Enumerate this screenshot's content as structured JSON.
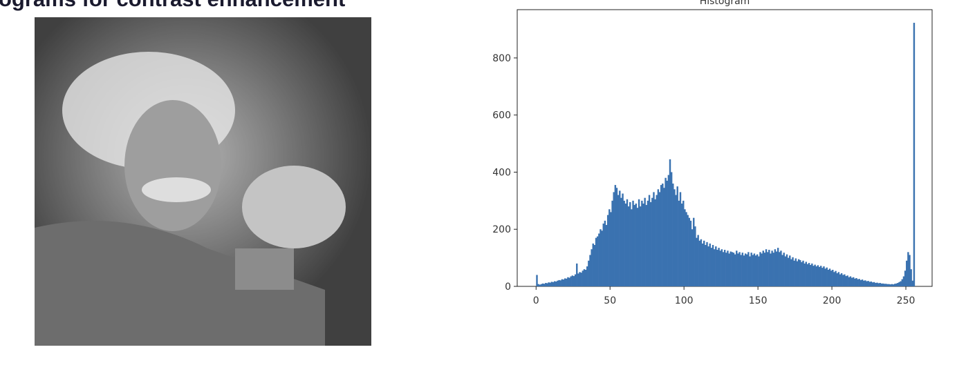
{
  "title": "ograms for contrast enhancement",
  "chart_data": {
    "type": "histogram",
    "title": "Histogram",
    "color": "#3a72b0",
    "bins": [
      0,
      1,
      2,
      3,
      4,
      5,
      6,
      7,
      8,
      9,
      10,
      11,
      12,
      13,
      14,
      15,
      16,
      17,
      18,
      19,
      20,
      21,
      22,
      23,
      24,
      25,
      26,
      27,
      28,
      29,
      30,
      31,
      32,
      33,
      34,
      35,
      36,
      37,
      38,
      39,
      40,
      41,
      42,
      43,
      44,
      45,
      46,
      47,
      48,
      49,
      50,
      51,
      52,
      53,
      54,
      55,
      56,
      57,
      58,
      59,
      60,
      61,
      62,
      63,
      64,
      65,
      66,
      67,
      68,
      69,
      70,
      71,
      72,
      73,
      74,
      75,
      76,
      77,
      78,
      79,
      80,
      81,
      82,
      83,
      84,
      85,
      86,
      87,
      88,
      89,
      90,
      91,
      92,
      93,
      94,
      95,
      96,
      97,
      98,
      99,
      100,
      101,
      102,
      103,
      104,
      105,
      106,
      107,
      108,
      109,
      110,
      111,
      112,
      113,
      114,
      115,
      116,
      117,
      118,
      119,
      120,
      121,
      122,
      123,
      124,
      125,
      126,
      127,
      128,
      129,
      130,
      131,
      132,
      133,
      134,
      135,
      136,
      137,
      138,
      139,
      140,
      141,
      142,
      143,
      144,
      145,
      146,
      147,
      148,
      149,
      150,
      151,
      152,
      153,
      154,
      155,
      156,
      157,
      158,
      159,
      160,
      161,
      162,
      163,
      164,
      165,
      166,
      167,
      168,
      169,
      170,
      171,
      172,
      173,
      174,
      175,
      176,
      177,
      178,
      179,
      180,
      181,
      182,
      183,
      184,
      185,
      186,
      187,
      188,
      189,
      190,
      191,
      192,
      193,
      194,
      195,
      196,
      197,
      198,
      199,
      200,
      201,
      202,
      203,
      204,
      205,
      206,
      207,
      208,
      209,
      210,
      211,
      212,
      213,
      214,
      215,
      216,
      217,
      218,
      219,
      220,
      221,
      222,
      223,
      224,
      225,
      226,
      227,
      228,
      229,
      230,
      231,
      232,
      233,
      234,
      235,
      236,
      237,
      238,
      239,
      240,
      241,
      242,
      243,
      244,
      245,
      246,
      247,
      248,
      249,
      250,
      251,
      252,
      253,
      254,
      255,
      256
    ],
    "values": [
      40,
      8,
      6,
      8,
      10,
      9,
      12,
      11,
      14,
      13,
      16,
      15,
      18,
      17,
      20,
      22,
      21,
      25,
      24,
      28,
      27,
      32,
      30,
      35,
      38,
      36,
      42,
      80,
      45,
      50,
      48,
      55,
      60,
      58,
      70,
      90,
      110,
      130,
      150,
      145,
      170,
      175,
      185,
      200,
      195,
      220,
      230,
      215,
      250,
      270,
      260,
      300,
      330,
      355,
      345,
      320,
      335,
      310,
      325,
      300,
      290,
      305,
      280,
      295,
      270,
      300,
      285,
      290,
      275,
      305,
      280,
      300,
      290,
      310,
      285,
      300,
      320,
      295,
      310,
      330,
      305,
      320,
      340,
      330,
      355,
      360,
      345,
      380,
      370,
      390,
      445,
      400,
      360,
      340,
      320,
      350,
      300,
      330,
      290,
      300,
      270,
      260,
      250,
      240,
      230,
      200,
      240,
      210,
      170,
      180,
      160,
      165,
      150,
      160,
      145,
      155,
      140,
      150,
      135,
      145,
      130,
      140,
      128,
      135,
      125,
      130,
      120,
      128,
      118,
      125,
      115,
      122,
      120,
      118,
      112,
      125,
      115,
      120,
      110,
      118,
      108,
      115,
      112,
      120,
      105,
      118,
      110,
      115,
      108,
      112,
      105,
      120,
      115,
      125,
      118,
      130,
      120,
      128,
      115,
      125,
      118,
      130,
      122,
      135,
      120,
      125,
      110,
      118,
      105,
      112,
      100,
      108,
      95,
      102,
      90,
      98,
      88,
      95,
      92,
      85,
      90,
      80,
      86,
      78,
      82,
      75,
      80,
      72,
      76,
      70,
      74,
      68,
      72,
      65,
      70,
      62,
      66,
      58,
      62,
      55,
      58,
      50,
      54,
      46,
      50,
      42,
      46,
      40,
      42,
      36,
      38,
      32,
      35,
      30,
      32,
      27,
      29,
      25,
      26,
      22,
      24,
      20,
      21,
      18,
      19,
      16,
      17,
      14,
      15,
      12,
      13,
      11,
      12,
      10,
      10,
      9,
      9,
      8,
      8,
      7,
      8,
      7,
      9,
      10,
      12,
      15,
      18,
      25,
      35,
      55,
      90,
      120,
      110,
      60,
      20,
      923
    ],
    "xlim": [
      -12.75,
      267.75
    ],
    "xticks": [
      0,
      50,
      100,
      150,
      200,
      250
    ],
    "ylim": [
      0,
      969
    ],
    "yticks": [
      0,
      200,
      400,
      600,
      800
    ]
  }
}
